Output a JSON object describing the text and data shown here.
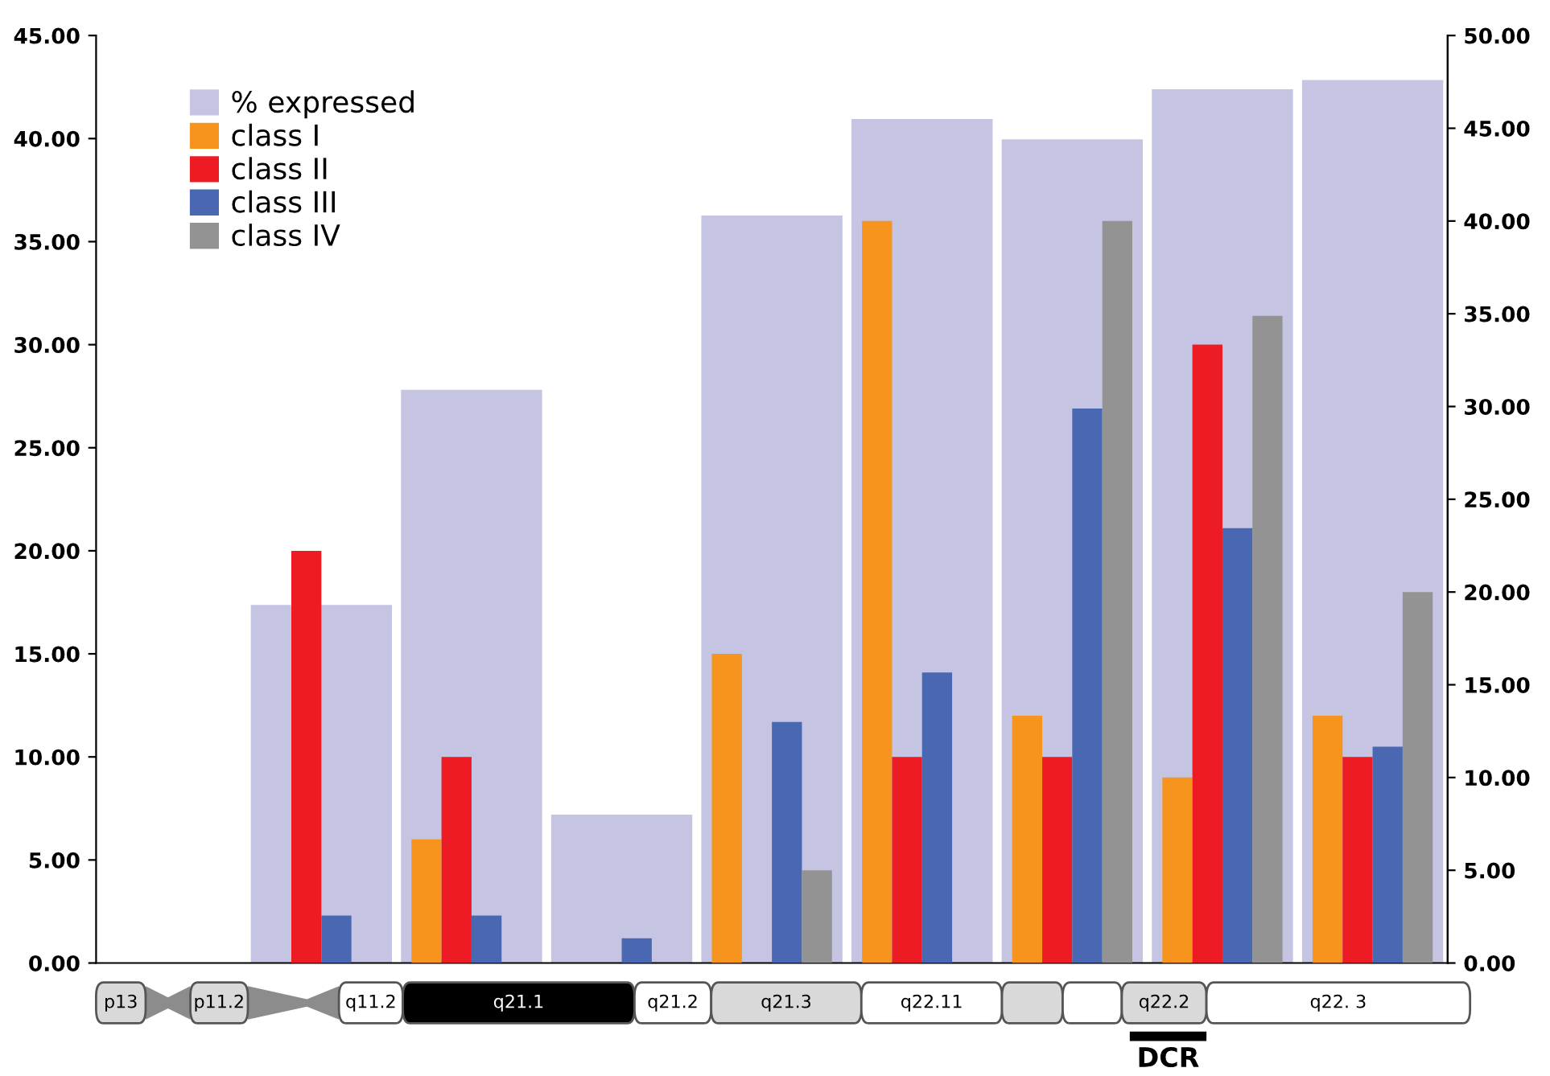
{
  "chart_data": {
    "type": "bar",
    "categories": [
      null,
      null,
      null,
      null,
      null,
      null,
      null,
      null,
      null
    ],
    "series": [
      {
        "name": "% expressed",
        "color": "#c6c4e3",
        "axis": "y2",
        "values": [
          null,
          19.3,
          30.9,
          8.0,
          40.3,
          45.5,
          44.4,
          47.1,
          47.6
        ]
      },
      {
        "name": "class I",
        "color": "#f7941d",
        "values": [
          null,
          null,
          6,
          null,
          15,
          36,
          12,
          9,
          12
        ]
      },
      {
        "name": "class II",
        "color": "#ed1c24",
        "values": [
          null,
          20,
          10,
          null,
          null,
          10,
          10,
          30,
          10
        ]
      },
      {
        "name": "class III",
        "color": "#4a67b1",
        "values": [
          null,
          2.3,
          2.3,
          1.2,
          11.7,
          14.1,
          26.9,
          21.1,
          10.5
        ]
      },
      {
        "name": "class IV",
        "color": "#939393",
        "values": [
          null,
          null,
          null,
          null,
          4.5,
          null,
          36,
          31.4,
          18
        ]
      }
    ],
    "ylim": [
      0,
      45
    ],
    "yticks": [
      {
        "value": 0,
        "label": "0.00"
      },
      {
        "value": 5,
        "label": "5.00"
      },
      {
        "value": 10,
        "label": "10.00"
      },
      {
        "value": 15,
        "label": "15.00"
      },
      {
        "value": 20,
        "label": "20.00"
      },
      {
        "value": 25,
        "label": "25.00"
      },
      {
        "value": 30,
        "label": "30.00"
      },
      {
        "value": 35,
        "label": "35.00"
      },
      {
        "value": 40,
        "label": "40.00"
      },
      {
        "value": 45,
        "label": "45.00"
      }
    ],
    "y2lim": [
      0,
      50
    ],
    "y2ticks": [
      {
        "value": 0,
        "label": "0.00"
      },
      {
        "value": 5,
        "label": "5.00"
      },
      {
        "value": 10,
        "label": "10.00"
      },
      {
        "value": 15,
        "label": "15.00"
      },
      {
        "value": 20,
        "label": "20.00"
      },
      {
        "value": 25,
        "label": "25.00"
      },
      {
        "value": 30,
        "label": "30.00"
      },
      {
        "value": 35,
        "label": "35.00"
      },
      {
        "value": 40,
        "label": "40.00"
      },
      {
        "value": 45,
        "label": "45.00"
      },
      {
        "value": 50,
        "label": "50.00"
      }
    ],
    "tick_labels": "y",
    "grid": false,
    "legend": "top left",
    "annotations": [
      "p13",
      "p11.2",
      "q11.2",
      "q21.1",
      "q21.2",
      "q21.3",
      "q22.11",
      "q22.2",
      "q22. 3",
      "DCR"
    ]
  }
}
